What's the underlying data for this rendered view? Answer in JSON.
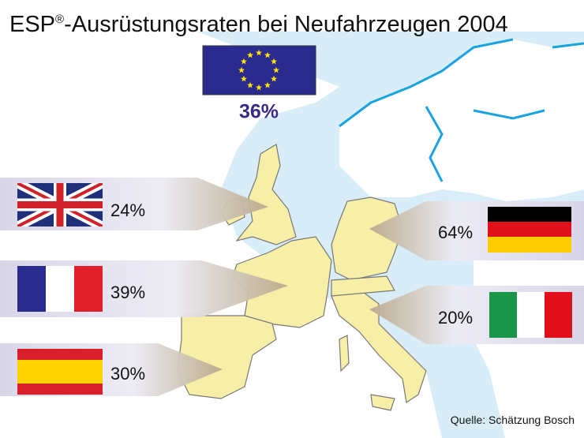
{
  "title": {
    "prefix": "ESP",
    "superscript": "®",
    "rest": "-Ausrüstungsraten bei Neufahrzeugen 2004"
  },
  "eu": {
    "label": "36%"
  },
  "countries": [
    {
      "label": "24%"
    },
    {
      "label": "39%"
    },
    {
      "label": "30%"
    },
    {
      "label": "64%"
    },
    {
      "label": "20%"
    }
  ],
  "source": "Quelle: Schätzung Bosch"
}
